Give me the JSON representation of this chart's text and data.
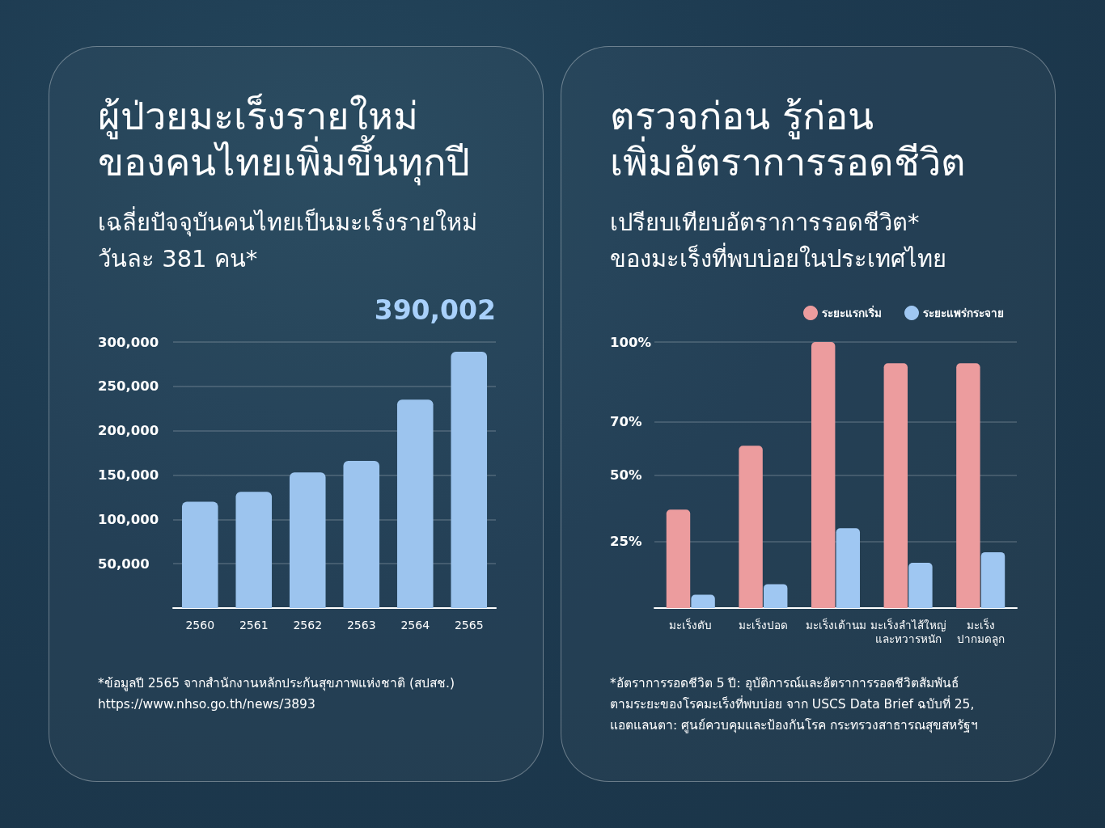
{
  "chart_data": [
    {
      "type": "bar",
      "title": "ผู้ป่วยมะเร็งรายใหม่\nของคนไทยเพิ่มขึ้นทุกปี",
      "subtitle": "เฉลี่ยปัจจุบันคนไทยเป็นมะเร็งรายใหม่\nวันละ 381 คน*",
      "categories": [
        "2560",
        "2561",
        "2562",
        "2563",
        "2564",
        "2565"
      ],
      "values": [
        120000,
        131000,
        153000,
        166000,
        235000,
        289000
      ],
      "color": "#9cc4ee",
      "ylim": [
        0,
        300000
      ],
      "yticks": [
        {
          "value": 50000,
          "label": "50,000"
        },
        {
          "value": 100000,
          "label": "100,000"
        },
        {
          "value": 150000,
          "label": "150,000"
        },
        {
          "value": 200000,
          "label": "200,000"
        },
        {
          "value": 250000,
          "label": "250,000"
        },
        {
          "value": 300000,
          "label": "300,000"
        }
      ],
      "grid": "y",
      "annotations": [
        "390,002",
        "*ข้อมูลปี 2565 จากสำนักงานหลักประกันสุขภาพแห่งชาติ (สปสช.)",
        "https://www.nhso.go.th/news/3893"
      ]
    },
    {
      "type": "bar",
      "title": "ตรวจก่อน รู้ก่อน\nเพิ่มอัตราการรอดชีวิต",
      "subtitle": "เปรียบเทียบอัตราการรอดชีวิต*\nของมะเร็งที่พบบ่อยในประเทศไทย",
      "categories": [
        "มะเร็งตับ",
        "มะเร็งปอด",
        "มะเร็งเต้านม",
        "มะเร็งลำไส้ใหญ่\nและทวารหนัก",
        "มะเร็ง\nปากมดลูก"
      ],
      "series": [
        {
          "name": "ระยะแรกเริ่ม",
          "color": "#ec9c9e",
          "values": [
            37,
            61,
            100,
            92,
            92
          ]
        },
        {
          "name": "ระยะแพร่กระจาย",
          "color": "#9fc7f2",
          "values": [
            5,
            9,
            30,
            17,
            21
          ]
        }
      ],
      "ylim": [
        0,
        100
      ],
      "yticks": [
        {
          "value": 25,
          "label": "25%"
        },
        {
          "value": 50,
          "label": "50%"
        },
        {
          "value": 70,
          "label": "70%"
        },
        {
          "value": 100,
          "label": "100%"
        }
      ],
      "grid": "y",
      "legend": "top right",
      "annotations": [
        "*อัตราการรอดชีวิต 5 ปี: อุบัติการณ์และอัตราการรอดชีวิตสัมพันธ์\nตามระยะของโรคมะเร็งที่พบบ่อย จาก USCS Data Brief ฉบับที่ 25,\nแอตแลนตา: ศูนย์ควบคุมและป้องกันโรค กระทรวงสาธารณสุขสหรัฐฯ"
      ]
    }
  ]
}
